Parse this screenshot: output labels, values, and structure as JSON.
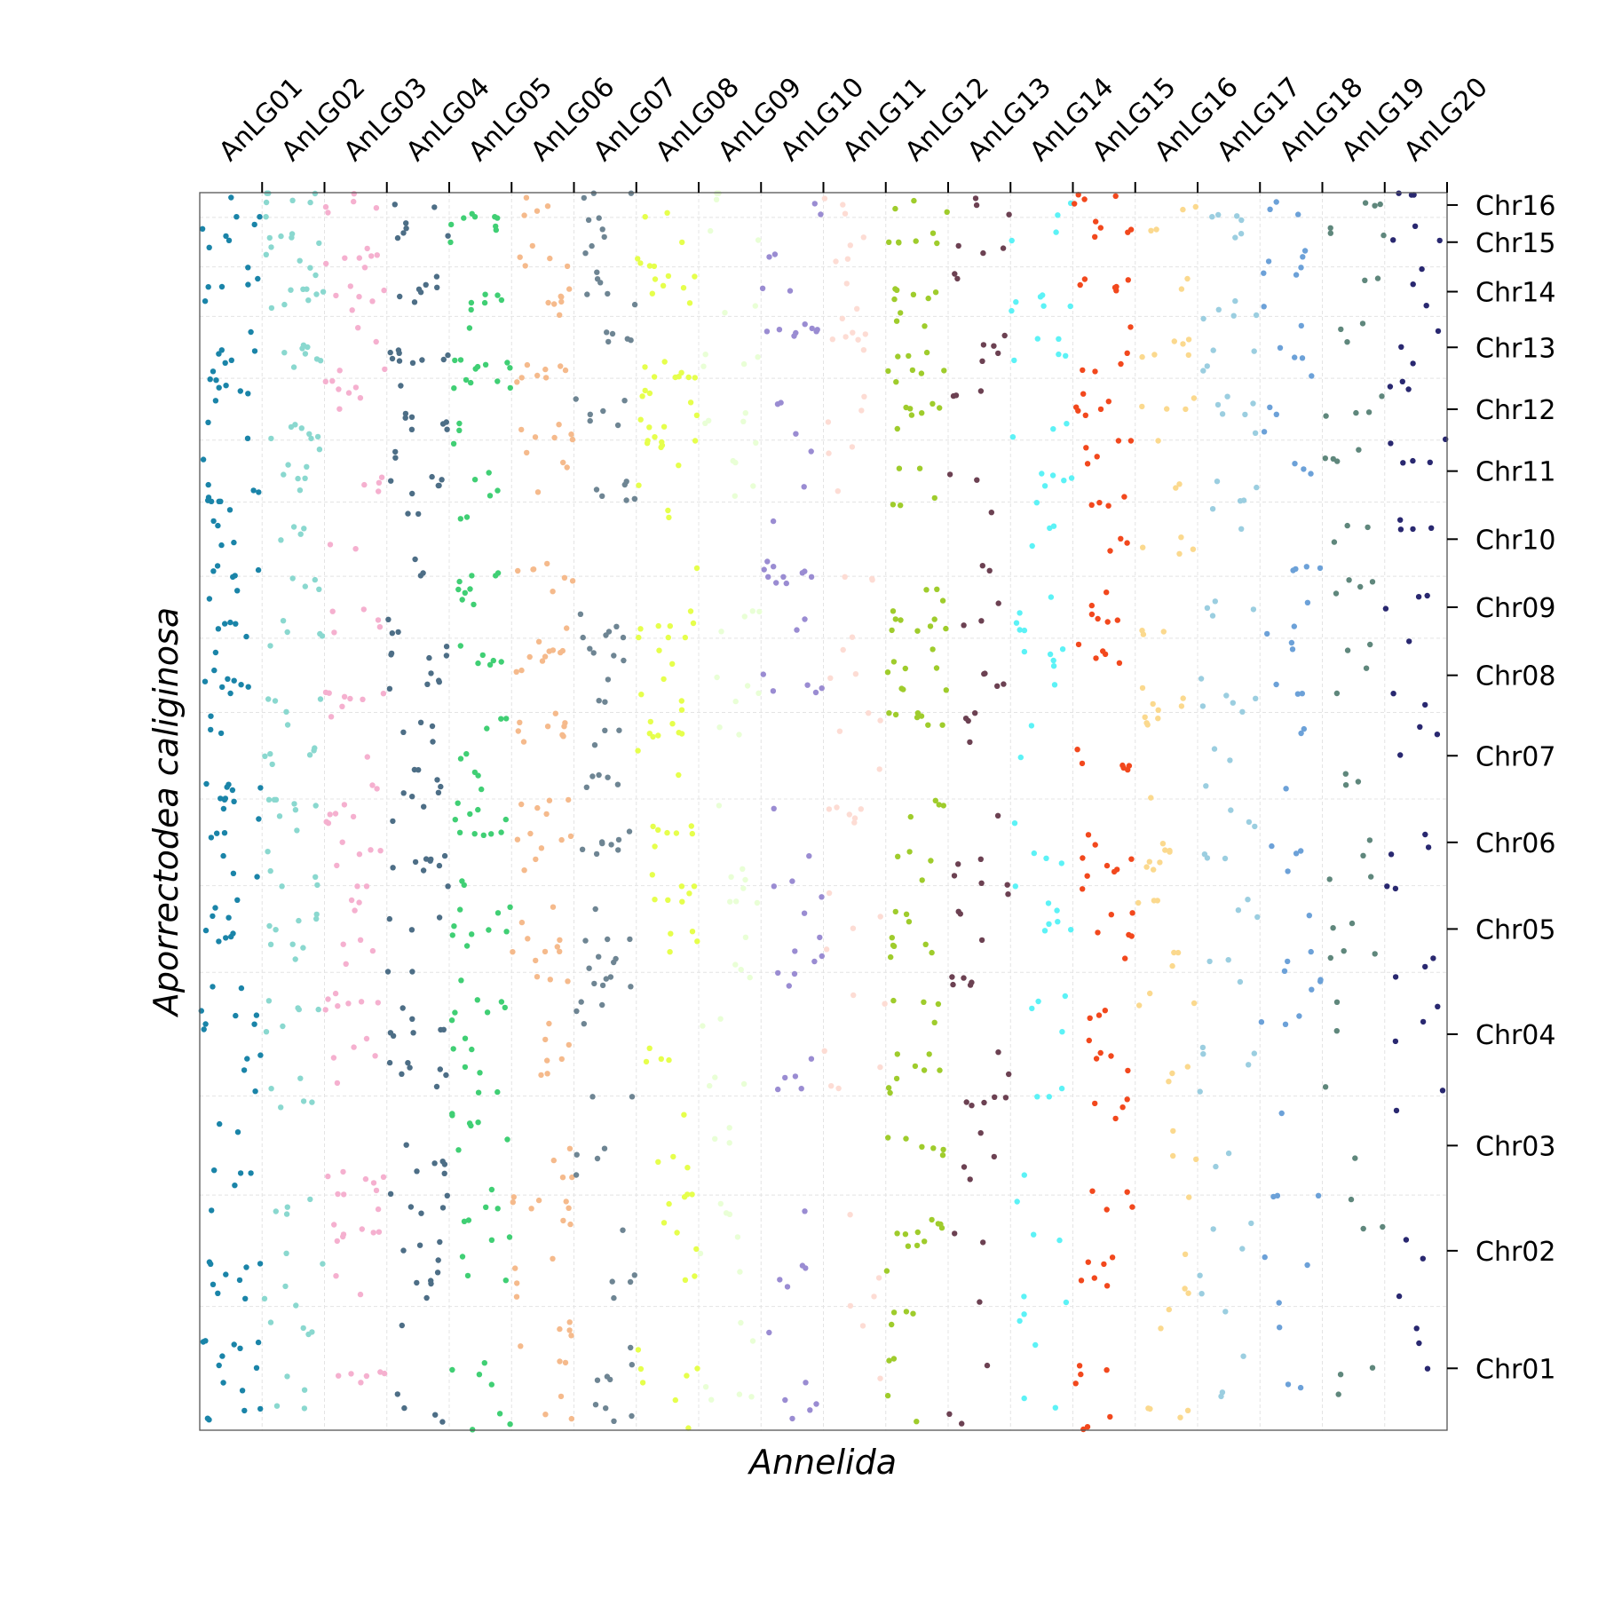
{
  "chart_data": {
    "type": "scatter",
    "title": "",
    "xlabel": "Annelida",
    "ylabel": "Aporrectodea caliginosa",
    "x_categories": [
      "AnLG01",
      "AnLG02",
      "AnLG03",
      "AnLG04",
      "AnLG05",
      "AnLG06",
      "AnLG07",
      "AnLG08",
      "AnLG09",
      "AnLG10",
      "AnLG11",
      "AnLG12",
      "AnLG13",
      "AnLG14",
      "AnLG15",
      "AnLG16",
      "AnLG17",
      "AnLG18",
      "AnLG19",
      "AnLG20"
    ],
    "x_category_spans": [
      [
        0,
        2
      ],
      [
        2,
        4
      ],
      [
        4,
        6
      ],
      [
        6,
        8
      ],
      [
        8,
        10
      ],
      [
        10,
        12
      ],
      [
        12,
        14
      ],
      [
        14,
        16
      ],
      [
        16,
        18
      ],
      [
        18,
        20
      ],
      [
        20,
        22
      ],
      [
        22,
        24
      ],
      [
        24,
        26
      ],
      [
        26,
        28
      ],
      [
        28,
        30
      ],
      [
        30,
        32
      ],
      [
        32,
        34
      ],
      [
        34,
        36
      ],
      [
        36,
        38
      ],
      [
        38,
        40
      ]
    ],
    "y_categories": [
      "Chr01",
      "Chr02",
      "Chr03",
      "Chr04",
      "Chr05",
      "Chr06",
      "Chr07",
      "Chr08",
      "Chr09",
      "Chr10",
      "Chr11",
      "Chr12",
      "Chr13",
      "Chr14",
      "Chr15",
      "Chr16"
    ],
    "y_category_spans": [
      [
        0,
        10
      ],
      [
        10,
        19
      ],
      [
        19,
        27
      ],
      [
        27,
        37
      ],
      [
        37,
        44
      ],
      [
        44,
        51
      ],
      [
        51,
        58
      ],
      [
        58,
        64
      ],
      [
        64,
        69
      ],
      [
        69,
        75
      ],
      [
        75,
        80
      ],
      [
        80,
        85
      ],
      [
        85,
        90
      ],
      [
        90,
        94
      ],
      [
        94,
        98
      ],
      [
        98,
        100
      ]
    ],
    "xlim": [
      0,
      40
    ],
    "ylim": [
      0,
      100
    ],
    "grid": true,
    "x_axis_position": "top",
    "y_axis_position": "right",
    "series_colors": [
      "#1a84a8",
      "#8ad8cf",
      "#f5b0cf",
      "#4d6e86",
      "#40cf74",
      "#f5ba8c",
      "#6e8593",
      "#e6ff4c",
      "#e9ffd6",
      "#9a8cd2",
      "#fddcd4",
      "#9fcc2c",
      "#6c4152",
      "#5cf2f6",
      "#f2481d",
      "#fbd98e",
      "#9bcee0",
      "#6ca1d8",
      "#5f877c",
      "#292870"
    ],
    "point_density": [
      [
        14,
        10,
        6,
        12,
        9,
        10,
        10,
        9,
        8,
        9,
        9,
        9,
        7,
        6,
        5,
        3
      ],
      [
        8,
        9,
        3,
        8,
        10,
        12,
        7,
        5,
        8,
        4,
        7,
        7,
        8,
        10,
        8,
        7
      ],
      [
        6,
        10,
        8,
        12,
        9,
        11,
        4,
        7,
        5,
        2,
        4,
        7,
        4,
        7,
        6,
        5
      ],
      [
        5,
        13,
        7,
        14,
        6,
        10,
        11,
        10,
        3,
        5,
        8,
        8,
        9,
        7,
        5,
        2
      ],
      [
        7,
        9,
        8,
        14,
        9,
        12,
        8,
        6,
        6,
        5,
        5,
        7,
        8,
        6,
        6,
        3
      ],
      [
        10,
        12,
        4,
        10,
        9,
        12,
        9,
        10,
        4,
        4,
        4,
        7,
        7,
        7,
        5,
        4
      ],
      [
        9,
        5,
        6,
        9,
        8,
        8,
        8,
        7,
        6,
        0,
        7,
        6,
        5,
        6,
        6,
        3
      ],
      [
        7,
        7,
        6,
        4,
        10,
        8,
        9,
        6,
        8,
        3,
        8,
        9,
        8,
        7,
        5,
        2
      ],
      [
        6,
        6,
        3,
        6,
        7,
        4,
        2,
        4,
        4,
        0,
        5,
        4,
        4,
        2,
        2,
        3
      ],
      [
        6,
        5,
        0,
        8,
        7,
        3,
        0,
        5,
        7,
        6,
        2,
        3,
        8,
        2,
        2,
        2
      ],
      [
        2,
        4,
        0,
        6,
        4,
        6,
        4,
        3,
        4,
        0,
        3,
        3,
        7,
        2,
        4,
        3
      ],
      [
        8,
        11,
        6,
        12,
        9,
        8,
        7,
        8,
        11,
        2,
        3,
        8,
        9,
        7,
        6,
        3
      ],
      [
        3,
        3,
        9,
        7,
        4,
        6,
        4,
        4,
        3,
        3,
        2,
        3,
        5,
        2,
        3,
        3
      ],
      [
        5,
        5,
        3,
        5,
        7,
        4,
        2,
        6,
        5,
        4,
        5,
        3,
        5,
        6,
        2,
        2
      ],
      [
        7,
        8,
        6,
        8,
        7,
        8,
        6,
        5,
        6,
        6,
        6,
        6,
        5,
        6,
        5,
        4
      ],
      [
        6,
        4,
        3,
        6,
        6,
        8,
        5,
        5,
        3,
        4,
        3,
        4,
        6,
        2,
        2,
        2
      ],
      [
        4,
        5,
        2,
        6,
        5,
        6,
        3,
        6,
        4,
        2,
        4,
        6,
        5,
        4,
        3,
        3
      ],
      [
        3,
        6,
        1,
        6,
        4,
        4,
        3,
        5,
        3,
        4,
        3,
        3,
        5,
        4,
        3,
        3
      ],
      [
        3,
        3,
        1,
        3,
        5,
        4,
        3,
        4,
        4,
        3,
        4,
        4,
        3,
        2,
        3,
        3
      ],
      [
        3,
        3,
        1,
        5,
        4,
        3,
        3,
        3,
        3,
        4,
        4,
        4,
        3,
        3,
        3,
        3
      ]
    ]
  }
}
